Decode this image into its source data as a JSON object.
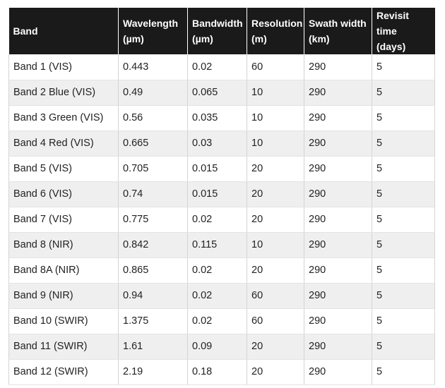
{
  "table": {
    "headers": [
      {
        "line1": "Band",
        "line2": ""
      },
      {
        "line1": "Wavelength",
        "line2": "(µm)"
      },
      {
        "line1": "Bandwidth",
        "line2": "(µm)"
      },
      {
        "line1": "Resolution",
        "line2": "(m)"
      },
      {
        "line1": "Swath width",
        "line2": "(km)"
      },
      {
        "line1": "Revisit time",
        "line2": "(days)"
      }
    ],
    "rows": [
      [
        "Band 1 (VIS)",
        "0.443",
        "0.02",
        "60",
        "290",
        "5"
      ],
      [
        "Band 2 Blue (VIS)",
        "0.49",
        "0.065",
        "10",
        "290",
        "5"
      ],
      [
        "Band 3 Green (VIS)",
        "0.56",
        "0.035",
        "10",
        "290",
        "5"
      ],
      [
        "Band 4 Red (VIS)",
        "0.665",
        "0.03",
        "10",
        "290",
        "5"
      ],
      [
        "Band 5 (VIS)",
        "0.705",
        "0.015",
        "20",
        "290",
        "5"
      ],
      [
        "Band 6 (VIS)",
        "0.74",
        "0.015",
        "20",
        "290",
        "5"
      ],
      [
        "Band 7 (VIS)",
        "0.775",
        "0.02",
        "20",
        "290",
        "5"
      ],
      [
        "Band 8 (NIR)",
        "0.842",
        "0.115",
        "10",
        "290",
        "5"
      ],
      [
        "Band 8A (NIR)",
        "0.865",
        "0.02",
        "20",
        "290",
        "5"
      ],
      [
        "Band 9 (NIR)",
        "0.94",
        "0.02",
        "60",
        "290",
        "5"
      ],
      [
        "Band 10 (SWIR)",
        "1.375",
        "0.02",
        "60",
        "290",
        "5"
      ],
      [
        "Band 11 (SWIR)",
        "1.61",
        "0.09",
        "20",
        "290",
        "5"
      ],
      [
        "Band 12 (SWIR)",
        "2.19",
        "0.18",
        "20",
        "290",
        "5"
      ]
    ]
  }
}
